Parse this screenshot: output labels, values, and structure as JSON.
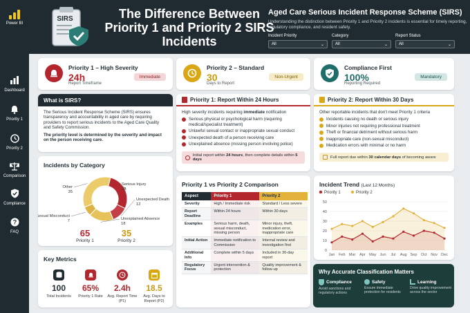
{
  "app": {
    "name": "Power BI"
  },
  "sidebar": {
    "items": [
      {
        "label": "Dashboard",
        "icon": "bar-chart-icon"
      },
      {
        "label": "Priority 1",
        "icon": "bell-icon"
      },
      {
        "label": "Priority 2",
        "icon": "clock-icon"
      },
      {
        "label": "Comparison",
        "icon": "scales-icon"
      },
      {
        "label": "Compliance",
        "icon": "shield-check-icon"
      },
      {
        "label": "FAQ",
        "icon": "question-icon"
      }
    ]
  },
  "header": {
    "icon_label": "SIRS",
    "title": "The Difference Between Priority 1 and Priority 2 SIRS Incidents",
    "subtitle": "Aged Care Serious Incident Response Scheme (SIRS)",
    "description": "Understanding the distinction between Priority 1 and Priority 2 incidents is essential for timely reporting, regulatory compliance, and resident safety.",
    "filters": [
      {
        "label": "Incident Priority",
        "value": "All"
      },
      {
        "label": "Category",
        "value": "All"
      },
      {
        "label": "Report Status",
        "value": "All"
      }
    ]
  },
  "kpis": [
    {
      "title": "Priority 1 – High Severity",
      "value": "24h",
      "sub": "Report Timeframe",
      "badge": "Immediate",
      "color": "#b3262d",
      "bg": "#f3d6d7",
      "icon": "alarm-icon"
    },
    {
      "title": "Priority 2 – Standard",
      "value": "30",
      "sub": "Days to Report",
      "badge": "Non-Urgent",
      "color": "#c99a10",
      "bg": "#f6ebc8",
      "icon": "clock-icon"
    },
    {
      "title": "Compliance First",
      "value": "100%",
      "sub": "Reporting Required",
      "badge": "Mandatory",
      "color": "#1f6d68",
      "bg": "#d3e6e4",
      "icon": "shield-check-icon"
    }
  ],
  "what_is": {
    "title": "What is SIRS?",
    "p1": "The Serious Incident Response Scheme (SIRS) ensures transparency and accountability in aged care by requiring providers to report serious incidents to the Aged Care Quality and Safety Commission.",
    "p2": "The priority level is determined by the severity and impact on the person receiving care."
  },
  "p1_card": {
    "title": "Priority 1: Report Within 24 Hours",
    "intro_pre": "High severity incidents requiring ",
    "intro_bold": "immediate",
    "intro_post": " notification",
    "items": [
      "Serious physical or psychological harm (requiring medical/specialist treatment)",
      "Unlawful sexual contact or inappropriate sexual conduct",
      "Unexpected death of a person receiving care",
      "Unexplained absence (missing person involving police)"
    ],
    "note_pre": "Initial report within ",
    "note_bold": "24 hours",
    "note_mid": ", then complete details within ",
    "note_bold2": "5 days"
  },
  "p2_card": {
    "title": "Priority 2: Report Within 30 Days",
    "intro": "Other reportable incidents that don't meet Priority 1 criteria",
    "items": [
      "Incidents causing no death or serious injury",
      "Minor injuries not requiring professional treatment",
      "Theft or financial detriment without serious harm",
      "Inappropriate care (non-sexual misconduct)",
      "Medication errors with minimal or no harm"
    ],
    "note_pre": "Full report due within ",
    "note_bold": "30 calendar days",
    "note_post": " of becoming aware"
  },
  "category_card": {
    "title": "Incidents by Category",
    "p1_label": "Priority 1",
    "p2_label": "Priority 2",
    "p1_total": "65",
    "p2_total": "35"
  },
  "chart_data": [
    {
      "type": "pie",
      "title": "Incidents by Category",
      "categories": [
        "Serious Injury",
        "Unexpected Death",
        "Unexplained Absence",
        "Sexual Misconduct",
        "Other"
      ],
      "values": [
        28,
        12,
        18,
        7,
        35
      ],
      "colors": [
        "#b3262d",
        "#c24046",
        "#e7c25a",
        "#dcb244",
        "#eccc6a"
      ]
    },
    {
      "type": "line",
      "title": "Incident Trend (Last 12 Months)",
      "categories": [
        "Jan",
        "Feb",
        "Mar",
        "Apr",
        "May",
        "Jun",
        "Jul",
        "Aug",
        "Sep",
        "Oct",
        "Nov",
        "Dec"
      ],
      "ylim": [
        0,
        50
      ],
      "yticks": [
        0,
        10,
        20,
        30,
        40,
        50
      ],
      "grid": true,
      "legend": "top-left",
      "series": [
        {
          "name": "Priority 1",
          "color": "#b3262d",
          "values": [
            8,
            14,
            11,
            17,
            9,
            14,
            12,
            19,
            15,
            20,
            18,
            12
          ]
        },
        {
          "name": "Priority 2",
          "color": "#e2b23b",
          "values": [
            22,
            27,
            25,
            30,
            24,
            29,
            35,
            43,
            38,
            31,
            28,
            23
          ]
        }
      ]
    }
  ],
  "comparison": {
    "title": "Priority 1 vs Priority 2 Comparison",
    "headers": [
      "Aspect",
      "Priority 1",
      "Priority 2"
    ],
    "rows": [
      [
        "Severity",
        "High / Immediate risk",
        "Standard / Less severe"
      ],
      [
        "Report Deadline",
        "Within 24 hours",
        "Within 30 days"
      ],
      [
        "Examples",
        "Serious harm, death, sexual misconduct, missing person",
        "Minor injury, theft, medication error, inappropriate care"
      ],
      [
        "Initial Action",
        "Immediate notification to Commission",
        "Internal review and investigation first"
      ],
      [
        "Additional Info",
        "Complete within 5 days",
        "Included in 30-day report"
      ],
      [
        "Regulatory Focus",
        "Urgent intervention & protection",
        "Quality improvement & follow-up"
      ]
    ]
  },
  "trend": {
    "title": "Incident Trend ",
    "title_suffix": "(Last 12 Months)"
  },
  "metrics": {
    "title": "Key Metrics",
    "items": [
      {
        "value": "100",
        "label": "Total Incidents",
        "color": "#1f2b30",
        "icon": "database-icon"
      },
      {
        "value": "65%",
        "label": "Priority 1 Rate",
        "color": "#b3262d",
        "icon": "alarm-icon"
      },
      {
        "value": "2.4h",
        "label": "Avg. Report Time (P1)",
        "color": "#b3262d",
        "icon": "clock-icon"
      },
      {
        "value": "18.5",
        "label": "Avg. Days to Report (P2)",
        "color": "#c99a10",
        "icon": "calendar-icon"
      }
    ]
  },
  "why": {
    "title": "Why Accurate Classification Matters",
    "cols": [
      {
        "head": "Compliance",
        "text": "Avoid sanctions and regulatory actions",
        "icon": "shield-check-icon"
      },
      {
        "head": "Safety",
        "text": "Ensure immediate protection for residents",
        "icon": "person-icon"
      },
      {
        "head": "Learning",
        "text": "Drive quality improvement across the sector",
        "icon": "chart-icon"
      }
    ]
  }
}
